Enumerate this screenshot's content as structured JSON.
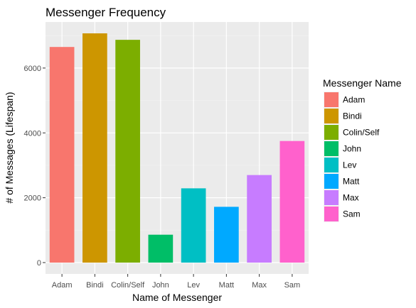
{
  "chart_data": {
    "type": "bar",
    "title": "Messenger Frequency",
    "xlabel": "Name of Messenger",
    "ylabel": "# of Messages (Lifespan)",
    "categories": [
      "Adam",
      "Bindi",
      "Colin/Self",
      "John",
      "Lev",
      "Matt",
      "Max",
      "Sam"
    ],
    "values": [
      6650,
      7070,
      6870,
      860,
      2290,
      1720,
      2700,
      3750
    ],
    "colors": [
      "#F8766D",
      "#CD9600",
      "#7CAE00",
      "#00BE67",
      "#00BFC4",
      "#00A9FF",
      "#C77CFF",
      "#FF61CC"
    ],
    "ylim": [
      -350,
      7420
    ],
    "yticks": [
      0,
      2000,
      4000,
      6000
    ],
    "ytick_labels": [
      "0",
      "2000",
      "4000",
      "6000"
    ],
    "grid": true,
    "legend": {
      "title": "Messenger Name",
      "placement": "right",
      "entries": [
        "Adam",
        "Bindi",
        "Colin/Self",
        "John",
        "Lev",
        "Matt",
        "Max",
        "Sam"
      ]
    }
  }
}
